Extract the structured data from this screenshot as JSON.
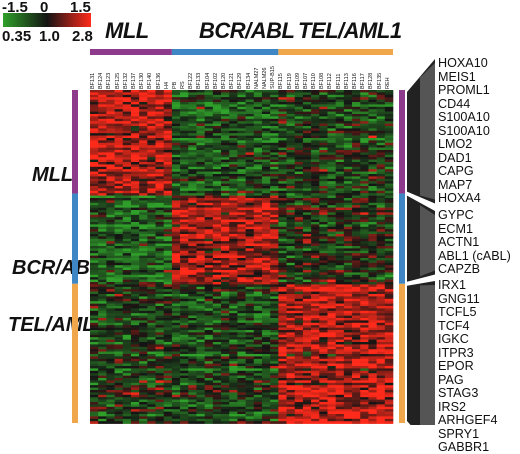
{
  "chart_data": {
    "type": "heatmap",
    "color_scale": {
      "colors": {
        "low": "#2fa02a",
        "mid": "#141414",
        "high": "#ff2a1a"
      },
      "log_labels": [
        "-1.5",
        "0",
        "1.5"
      ],
      "fold_labels": [
        "0.35",
        "1.0",
        "2.8"
      ]
    },
    "column_groups": [
      {
        "label": "MLL",
        "color": "#8e3a8c",
        "count": 10
      },
      {
        "label": "BCR/ABL",
        "color": "#3e86c4",
        "count": 13
      },
      {
        "label": "TEL/AML1",
        "color": "#f0a64a",
        "count": 14
      }
    ],
    "sample_ids": [
      "BF131",
      "BF124",
      "BF123",
      "BF125",
      "BF132",
      "BF137",
      "BF130",
      "BF140",
      "BF136",
      "H4",
      "PB",
      "RS",
      "BF122",
      "BF133",
      "BF104",
      "BF102",
      "BF120",
      "BF121",
      "BF129",
      "BF134",
      "NALM27",
      "NALM26",
      "SUP-B15",
      "BF115",
      "BF119",
      "BF109",
      "BF107",
      "BF110",
      "BF108",
      "BF112",
      "BF111",
      "BF113",
      "BF116",
      "BF117",
      "BF128",
      "BF135",
      "REH"
    ],
    "row_groups": [
      {
        "label": "MLL",
        "color": "#8e3a8c"
      },
      {
        "label": "BCR/ABL",
        "color": "#3e86c4"
      },
      {
        "label": "TEL/AML1",
        "color": "#f0a64a"
      }
    ],
    "highlighted_genes": [
      {
        "group": "MLL",
        "genes": [
          "HOXA10",
          "MEIS1",
          "PROML1",
          "CD44",
          "S100A10",
          "S100A10",
          "LMO2",
          "DAD1",
          "CAPG",
          "MAP7",
          "HOXA4"
        ]
      },
      {
        "group": "BCR/ABL",
        "genes": [
          "GYPC",
          "ECM1",
          "ACTN1",
          "ABL1 (cABL)",
          "CAPZB"
        ]
      },
      {
        "group": "TEL/AML1",
        "genes": [
          "IRX1",
          "GNG11",
          "TCFL5",
          "TCF4",
          "IGKC",
          "ITPR3",
          "EPOR",
          "PAG",
          "STAG3",
          "IRS2",
          "ARHGEF4",
          "SPRY1",
          "GABBR1"
        ]
      }
    ],
    "pattern": {
      "MLL": {
        "MLL": 1.0,
        "BCR/ABL": -0.6,
        "TEL/AML1": -0.3
      },
      "BCR/ABL": {
        "MLL": -0.7,
        "BCR/ABL": 0.8,
        "TEL/AML1": -0.2
      },
      "TEL/AML1": {
        "MLL": -0.3,
        "BCR/ABL": -0.4,
        "TEL/AML1": 1.0
      }
    }
  }
}
